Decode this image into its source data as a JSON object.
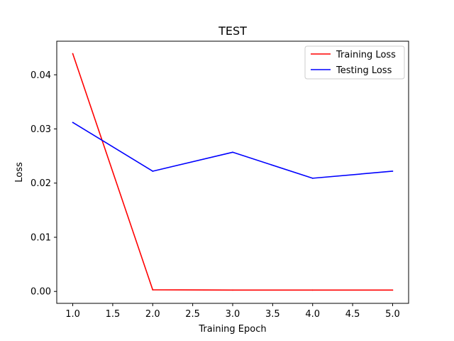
{
  "chart_data": {
    "type": "line",
    "title": "TEST",
    "xlabel": "Training Epoch",
    "ylabel": "Loss",
    "xlim": [
      0.8,
      5.2
    ],
    "ylim": [
      -0.0022,
      0.0462
    ],
    "xticks": [
      1.0,
      1.5,
      2.0,
      2.5,
      3.0,
      3.5,
      4.0,
      4.5,
      5.0
    ],
    "xtick_labels": [
      "1.0",
      "1.5",
      "2.0",
      "2.5",
      "3.0",
      "3.5",
      "4.0",
      "4.5",
      "5.0"
    ],
    "yticks": [
      0.0,
      0.01,
      0.02,
      0.03,
      0.04
    ],
    "ytick_labels": [
      "0.00",
      "0.01",
      "0.02",
      "0.03",
      "0.04"
    ],
    "grid": false,
    "legend_position": "top-right",
    "x": [
      1,
      2,
      3,
      4,
      5
    ],
    "series": [
      {
        "name": "Training Loss",
        "color": "#ff0000",
        "values": [
          0.0439,
          0.0003,
          0.00025,
          0.00025,
          0.00025
        ]
      },
      {
        "name": "Testing Loss",
        "color": "#0000ff",
        "values": [
          0.0312,
          0.0222,
          0.0257,
          0.0209,
          0.0222
        ]
      }
    ]
  }
}
